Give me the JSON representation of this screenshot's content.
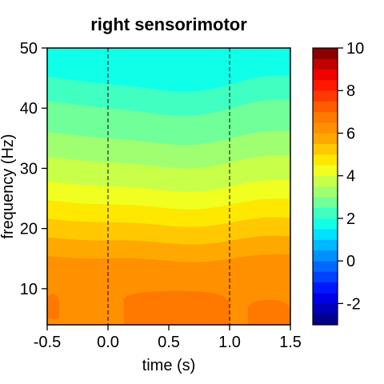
{
  "chart_data": {
    "type": "heatmap",
    "title": "right sensorimotor",
    "xlabel": "time (s)",
    "ylabel": "frequency (Hz)",
    "xlim": [
      -0.5,
      1.5
    ],
    "ylim": [
      4,
      50
    ],
    "xticks": [
      "-0.5",
      "0.0",
      "0.5",
      "1.0",
      "1.5"
    ],
    "yticks": [
      "10",
      "20",
      "30",
      "40",
      "50"
    ],
    "event_lines": [
      0.0,
      1.0
    ],
    "colorbar": {
      "range": [
        -3,
        10
      ],
      "ticks": [
        "-2",
        "0",
        "2",
        "4",
        "6",
        "8",
        "10"
      ],
      "levels": [
        {
          "from": -3.0,
          "to": -2.5,
          "color": "#00008b"
        },
        {
          "from": -2.5,
          "to": -2.0,
          "color": "#0000b8"
        },
        {
          "from": -2.0,
          "to": -1.5,
          "color": "#0000e6"
        },
        {
          "from": -1.5,
          "to": -1.0,
          "color": "#0018ff"
        },
        {
          "from": -1.0,
          "to": -0.5,
          "color": "#0040ff"
        },
        {
          "from": -0.5,
          "to": 0.0,
          "color": "#0068ff"
        },
        {
          "from": 0.0,
          "to": 0.5,
          "color": "#0090ff"
        },
        {
          "from": 0.5,
          "to": 1.0,
          "color": "#00b8ff"
        },
        {
          "from": 1.0,
          "to": 1.5,
          "color": "#00e0ff"
        },
        {
          "from": 1.5,
          "to": 2.0,
          "color": "#10ffe8"
        },
        {
          "from": 2.0,
          "to": 2.5,
          "color": "#40ffc0"
        },
        {
          "from": 2.5,
          "to": 3.0,
          "color": "#70ff98"
        },
        {
          "from": 3.0,
          "to": 3.5,
          "color": "#a0ff70"
        },
        {
          "from": 3.5,
          "to": 4.0,
          "color": "#c8ff48"
        },
        {
          "from": 4.0,
          "to": 4.5,
          "color": "#f0ff20"
        },
        {
          "from": 4.5,
          "to": 5.0,
          "color": "#ffe800"
        },
        {
          "from": 5.0,
          "to": 5.5,
          "color": "#ffc800"
        },
        {
          "from": 5.5,
          "to": 6.0,
          "color": "#ffa800"
        },
        {
          "from": 6.0,
          "to": 6.5,
          "color": "#ff9000"
        },
        {
          "from": 6.5,
          "to": 7.0,
          "color": "#ff7800"
        },
        {
          "from": 7.0,
          "to": 7.5,
          "color": "#ff5c00"
        },
        {
          "from": 7.5,
          "to": 8.0,
          "color": "#ff3a00"
        },
        {
          "from": 8.0,
          "to": 8.5,
          "color": "#ff1800"
        },
        {
          "from": 8.5,
          "to": 9.0,
          "color": "#f00000"
        },
        {
          "from": 9.0,
          "to": 9.5,
          "color": "#c00000"
        },
        {
          "from": 9.5,
          "to": 10.0,
          "color": "#8b0000"
        }
      ]
    },
    "bands": [
      {
        "from_hz": 44.0,
        "to_hz": 50.0,
        "color": "#10ffe8"
      },
      {
        "from_hz": 40.0,
        "to_hz": 44.0,
        "color": "#40ffc0"
      },
      {
        "from_hz": 35.0,
        "to_hz": 40.0,
        "color": "#70ff98"
      },
      {
        "from_hz": 31.0,
        "to_hz": 35.0,
        "color": "#a0ff70"
      },
      {
        "from_hz": 27.0,
        "to_hz": 31.0,
        "color": "#c8ff48"
      },
      {
        "from_hz": 24.0,
        "to_hz": 27.0,
        "color": "#f0ff20"
      },
      {
        "from_hz": 21.0,
        "to_hz": 24.0,
        "color": "#ffe800"
      },
      {
        "from_hz": 18.0,
        "to_hz": 21.0,
        "color": "#ffc800"
      },
      {
        "from_hz": 15.0,
        "to_hz": 18.0,
        "color": "#ffa800"
      },
      {
        "from_hz": 4.0,
        "to_hz": 15.0,
        "color": "#ff9000"
      }
    ],
    "peak_regions": [
      {
        "t_from": 0.13,
        "t_to": 1.0,
        "f_from": 4.0,
        "f_to": 9.5,
        "color": "#ff7800"
      },
      {
        "t_from": -0.5,
        "t_to": -0.4,
        "f_from": 5.0,
        "f_to": 9.0,
        "color": "#ff7800"
      },
      {
        "t_from": 1.15,
        "t_to": 1.5,
        "f_from": 4.0,
        "f_to": 8.0,
        "color": "#ff7800"
      }
    ]
  }
}
